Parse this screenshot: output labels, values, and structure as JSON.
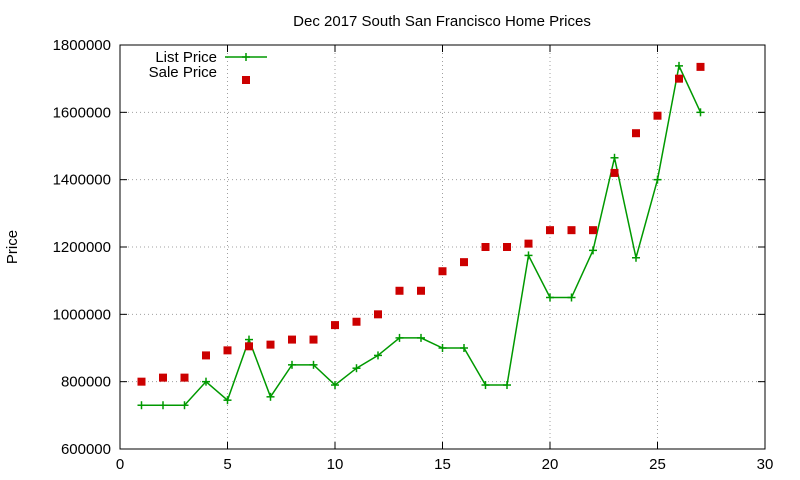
{
  "chart_data": {
    "type": "line",
    "title": "Dec 2017 South San Francisco Home Prices",
    "xlabel": "",
    "ylabel": "Price",
    "xlim": [
      0,
      30
    ],
    "ylim": [
      600000,
      1800000
    ],
    "x_ticks": [
      0,
      5,
      10,
      15,
      20,
      25,
      30
    ],
    "y_ticks": [
      600000,
      800000,
      1000000,
      1200000,
      1400000,
      1600000,
      1800000
    ],
    "grid": true,
    "legend_position": "top-left",
    "series": [
      {
        "name": "List Price",
        "style": "line+points",
        "color": "#009900",
        "x": [
          1,
          2,
          3,
          4,
          5,
          6,
          7,
          8,
          9,
          10,
          11,
          12,
          13,
          14,
          15,
          16,
          17,
          18,
          19,
          20,
          21,
          22,
          23,
          24,
          25,
          26,
          27
        ],
        "values": [
          730000,
          730000,
          730000,
          800000,
          745000,
          925000,
          755000,
          850000,
          850000,
          790000,
          840000,
          878000,
          930000,
          930000,
          900000,
          900000,
          790000,
          790000,
          1175000,
          1050000,
          1050000,
          1190000,
          1465000,
          1168000,
          1400000,
          1738000,
          1600000
        ]
      },
      {
        "name": "Sale Price",
        "style": "points",
        "color": "#cc0000",
        "x": [
          1,
          2,
          3,
          4,
          5,
          6,
          7,
          8,
          9,
          10,
          11,
          12,
          13,
          14,
          15,
          16,
          17,
          18,
          19,
          20,
          21,
          22,
          23,
          24,
          25,
          26,
          27
        ],
        "values": [
          800000,
          812000,
          812000,
          878000,
          893000,
          905000,
          910000,
          925000,
          925000,
          968000,
          978000,
          1000000,
          1070000,
          1070000,
          1128000,
          1155000,
          1200000,
          1200000,
          1210000,
          1250000,
          1250000,
          1250000,
          1420000,
          1538000,
          1590000,
          1700000,
          1735000
        ]
      }
    ]
  }
}
